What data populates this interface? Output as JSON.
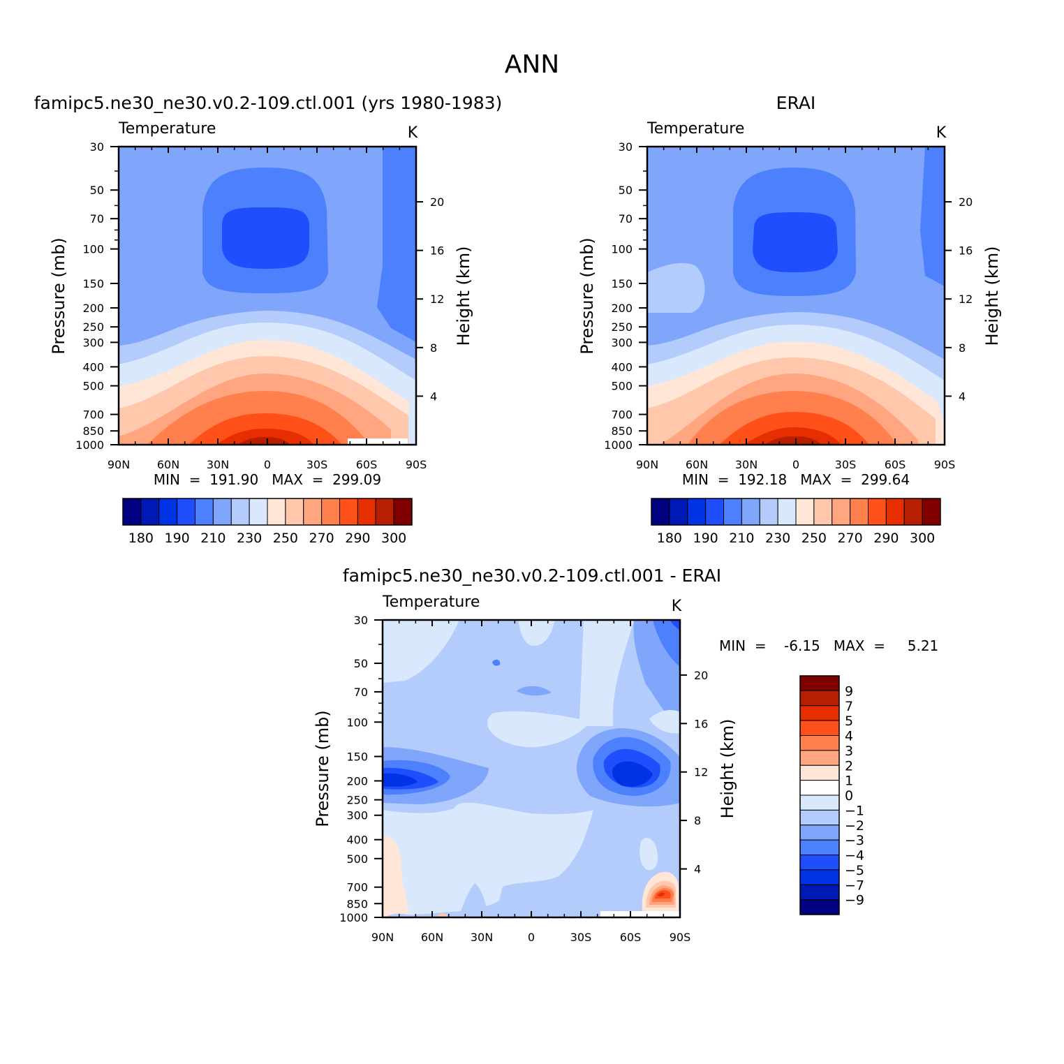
{
  "figure": {
    "title": "ANN"
  },
  "chart_data": [
    {
      "type": "contour",
      "id": "model",
      "title": "famipc5.ne30_ne30.v0.2-109.ctl.001  (yrs  1980-1983)",
      "variable": "Temperature",
      "units": "K",
      "xlabel": "",
      "ylabel": "Pressure  (mb)",
      "y2label": "Height  (km)",
      "x_ticks": [
        "90N",
        "60N",
        "30N",
        "0",
        "30S",
        "60S",
        "90S"
      ],
      "y_ticks": [
        "30",
        "50",
        "70",
        "100",
        "150",
        "200",
        "250",
        "300",
        "400",
        "500",
        "700",
        "850",
        "1000"
      ],
      "y2_ticks": [
        "20",
        "16",
        "12",
        "8",
        "4"
      ],
      "xlim": [
        90,
        -90
      ],
      "ylim": [
        1000,
        30
      ],
      "stats": "MIN  =  191.90   MAX  =  299.09",
      "min": 191.9,
      "max": 299.09,
      "colorbar": {
        "orientation": "horizontal",
        "labels": [
          "180",
          "190",
          "210",
          "230",
          "250",
          "270",
          "290",
          "300"
        ],
        "colors": [
          "#000080",
          "#0019b5",
          "#0033e6",
          "#1f4ffc",
          "#4d80fc",
          "#80a6fc",
          "#b3ccfc",
          "#d9e8fc",
          "#ffe6d6",
          "#ffc8ad",
          "#ffa680",
          "#ff7f4d",
          "#ff5019",
          "#e62e00",
          "#b81f00",
          "#800000"
        ]
      }
    },
    {
      "type": "contour",
      "id": "obs",
      "title": "ERAI",
      "variable": "Temperature",
      "units": "K",
      "xlabel": "",
      "ylabel": "Pressure  (mb)",
      "y2label": "Height  (km)",
      "x_ticks": [
        "90N",
        "60N",
        "30N",
        "0",
        "30S",
        "60S",
        "90S"
      ],
      "y_ticks": [
        "30",
        "50",
        "70",
        "100",
        "150",
        "200",
        "250",
        "300",
        "400",
        "500",
        "700",
        "850",
        "1000"
      ],
      "y2_ticks": [
        "20",
        "16",
        "12",
        "8",
        "4"
      ],
      "xlim": [
        90,
        -90
      ],
      "ylim": [
        1000,
        30
      ],
      "stats": "MIN  =  192.18   MAX  =  299.64",
      "min": 192.18,
      "max": 299.64,
      "colorbar": {
        "orientation": "horizontal",
        "labels": [
          "180",
          "190",
          "210",
          "230",
          "250",
          "270",
          "290",
          "300"
        ],
        "colors": [
          "#000080",
          "#0019b5",
          "#0033e6",
          "#1f4ffc",
          "#4d80fc",
          "#80a6fc",
          "#b3ccfc",
          "#d9e8fc",
          "#ffe6d6",
          "#ffc8ad",
          "#ffa680",
          "#ff7f4d",
          "#ff5019",
          "#e62e00",
          "#b81f00",
          "#800000"
        ]
      }
    },
    {
      "type": "contour",
      "id": "diff",
      "title": "famipc5.ne30_ne30.v0.2-109.ctl.001  -  ERAI",
      "variable": "Temperature",
      "units": "K",
      "xlabel": "",
      "ylabel": "Pressure  (mb)",
      "y2label": "Height  (km)",
      "x_ticks": [
        "90N",
        "60N",
        "30N",
        "0",
        "30S",
        "60S",
        "90S"
      ],
      "y_ticks": [
        "30",
        "50",
        "70",
        "100",
        "150",
        "200",
        "250",
        "300",
        "400",
        "500",
        "700",
        "850",
        "1000"
      ],
      "y2_ticks": [
        "20",
        "16",
        "12",
        "8",
        "4"
      ],
      "xlim": [
        90,
        -90
      ],
      "ylim": [
        1000,
        30
      ],
      "stats": "MIN  =    -6.15   MAX  =     5.21",
      "min": -6.15,
      "max": 5.21,
      "colorbar": {
        "orientation": "vertical",
        "labels": [
          "9",
          "7",
          "5",
          "4",
          "3",
          "2",
          "1",
          "0",
          "-1",
          "-2",
          "-3",
          "-4",
          "-5",
          "-7",
          "-9"
        ],
        "colors": [
          "#800000",
          "#b81f00",
          "#e62e00",
          "#ff5019",
          "#ff7f4d",
          "#ffa680",
          "#ffe6d6",
          "#ffffff",
          "#d9e8fc",
          "#b3ccfc",
          "#80a6fc",
          "#4d80fc",
          "#1f4ffc",
          "#0033e6",
          "#0019b5",
          "#000080"
        ]
      }
    }
  ]
}
